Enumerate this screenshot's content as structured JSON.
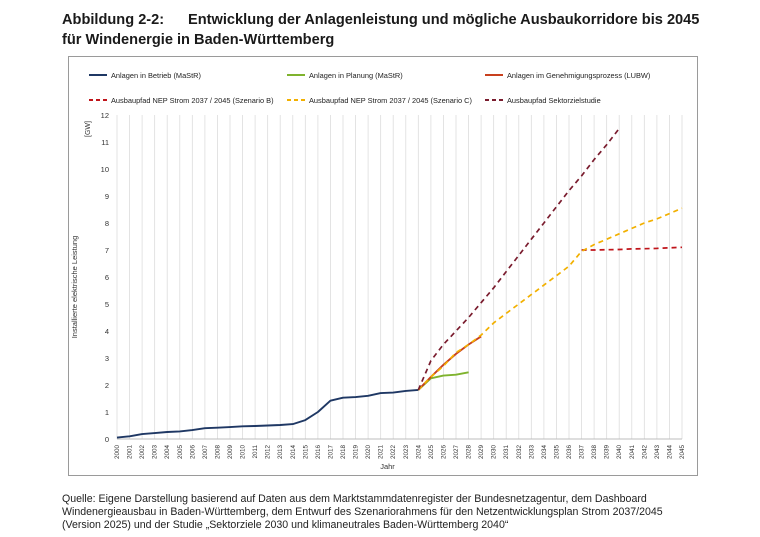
{
  "heading": {
    "number": "Abbildung 2-2:",
    "text": "Entwicklung der Anlagenleistung und mögliche Ausbaukorridore bis 2045",
    "line2": "für Windenergie in Baden-Württemberg"
  },
  "source": {
    "line1": "Quelle: Eigene Darstellung basierend auf Daten aus dem Marktstammdatenregister der Bundesnetzagentur, dem Dashboard",
    "line2": "Windenergieausbau in Baden-Württemberg, dem Entwurf des Szenariorahmens für den Netzentwicklungsplan Strom 2037/2045",
    "line3": "(Version 2025) und der Studie „Sektorziele 2030 und klimaneutrales Baden-Württemberg 2040“"
  },
  "chart_data": {
    "type": "line",
    "title": "",
    "xlabel": "Jahr",
    "ylabel": "Installierte elektrische Leistung",
    "unit": "[GW]",
    "xlim": [
      2000,
      2045
    ],
    "ylim": [
      0,
      12
    ],
    "yticks": [
      0,
      1,
      2,
      3,
      4,
      5,
      6,
      7,
      8,
      9,
      10,
      11,
      12
    ],
    "xticks": [
      "2000",
      "2001",
      "2002",
      "2003",
      "2004",
      "2005",
      "2006",
      "2007",
      "2008",
      "2009",
      "2010",
      "2011",
      "2012",
      "2013",
      "2014",
      "2015",
      "2016",
      "2017",
      "2018",
      "2019",
      "2020",
      "2021",
      "2022",
      "2023",
      "2024",
      "2025",
      "2026",
      "2027",
      "2028",
      "2029",
      "2030",
      "2031",
      "2032",
      "2033",
      "2034",
      "2035",
      "2036",
      "2037",
      "2038",
      "2039",
      "2040",
      "2041",
      "2042",
      "2043",
      "2044",
      "2045"
    ],
    "grid": "vertical",
    "legend_position": "top",
    "series": [
      {
        "name": "Anlagen in Betrieb (MaStR)",
        "color": "#1f3864",
        "dash": "solid",
        "x": [
          2000,
          2001,
          2002,
          2003,
          2004,
          2005,
          2006,
          2007,
          2008,
          2009,
          2010,
          2011,
          2012,
          2013,
          2014,
          2015,
          2016,
          2017,
          2018,
          2019,
          2020,
          2021,
          2022,
          2023,
          2024
        ],
        "y": [
          0.05,
          0.1,
          0.18,
          0.22,
          0.26,
          0.28,
          0.33,
          0.4,
          0.42,
          0.44,
          0.47,
          0.48,
          0.5,
          0.52,
          0.55,
          0.7,
          1.0,
          1.42,
          1.53,
          1.55,
          1.6,
          1.7,
          1.72,
          1.78,
          1.82
        ]
      },
      {
        "name": "Anlagen in Planung (MaStR)",
        "color": "#7fb32e",
        "dash": "solid",
        "x": [
          2024,
          2025,
          2026,
          2027,
          2028
        ],
        "y": [
          1.82,
          2.25,
          2.35,
          2.38,
          2.47
        ]
      },
      {
        "name": "Anlagen im Genehmigungsprozess (LUBW)",
        "color": "#c8401e",
        "dash": "solid",
        "x": [
          2024,
          2025,
          2026,
          2027,
          2028,
          2029
        ],
        "y": [
          1.82,
          2.3,
          2.75,
          3.15,
          3.5,
          3.8
        ]
      },
      {
        "name": "Ausbaupfad NEP Strom 2037 / 2045 (Szenario B)",
        "color": "#c0141a",
        "dash": "dashed",
        "x": [
          2037,
          2038,
          2039,
          2040,
          2041,
          2042,
          2043,
          2044,
          2045
        ],
        "y": [
          7.0,
          7.0,
          7.01,
          7.02,
          7.04,
          7.05,
          7.06,
          7.08,
          7.1
        ]
      },
      {
        "name": "Ausbaupfad NEP Strom 2037 / 2045 (Szenario C)",
        "color": "#f2b000",
        "dash": "dashed",
        "x": [
          2024,
          2025,
          2026,
          2027,
          2028,
          2029,
          2030,
          2031,
          2032,
          2033,
          2034,
          2035,
          2036,
          2037,
          2038,
          2039,
          2040,
          2041,
          2042,
          2043,
          2044,
          2045
        ],
        "y": [
          1.82,
          2.3,
          2.7,
          3.2,
          3.5,
          3.85,
          4.3,
          4.65,
          5.0,
          5.35,
          5.7,
          6.05,
          6.4,
          6.95,
          7.2,
          7.4,
          7.6,
          7.8,
          8.0,
          8.15,
          8.35,
          8.55
        ]
      },
      {
        "name": "Ausbaupfad Sektorzielstudie",
        "color": "#7a1c2e",
        "dash": "dashed",
        "x": [
          2024,
          2025,
          2026,
          2027,
          2028,
          2029,
          2030,
          2031,
          2032,
          2033,
          2034,
          2035,
          2036,
          2037,
          2038,
          2039,
          2040
        ],
        "y": [
          1.82,
          2.9,
          3.5,
          4.0,
          4.5,
          5.05,
          5.6,
          6.2,
          6.8,
          7.4,
          8.0,
          8.6,
          9.2,
          9.75,
          10.35,
          10.9,
          11.5
        ]
      }
    ]
  }
}
